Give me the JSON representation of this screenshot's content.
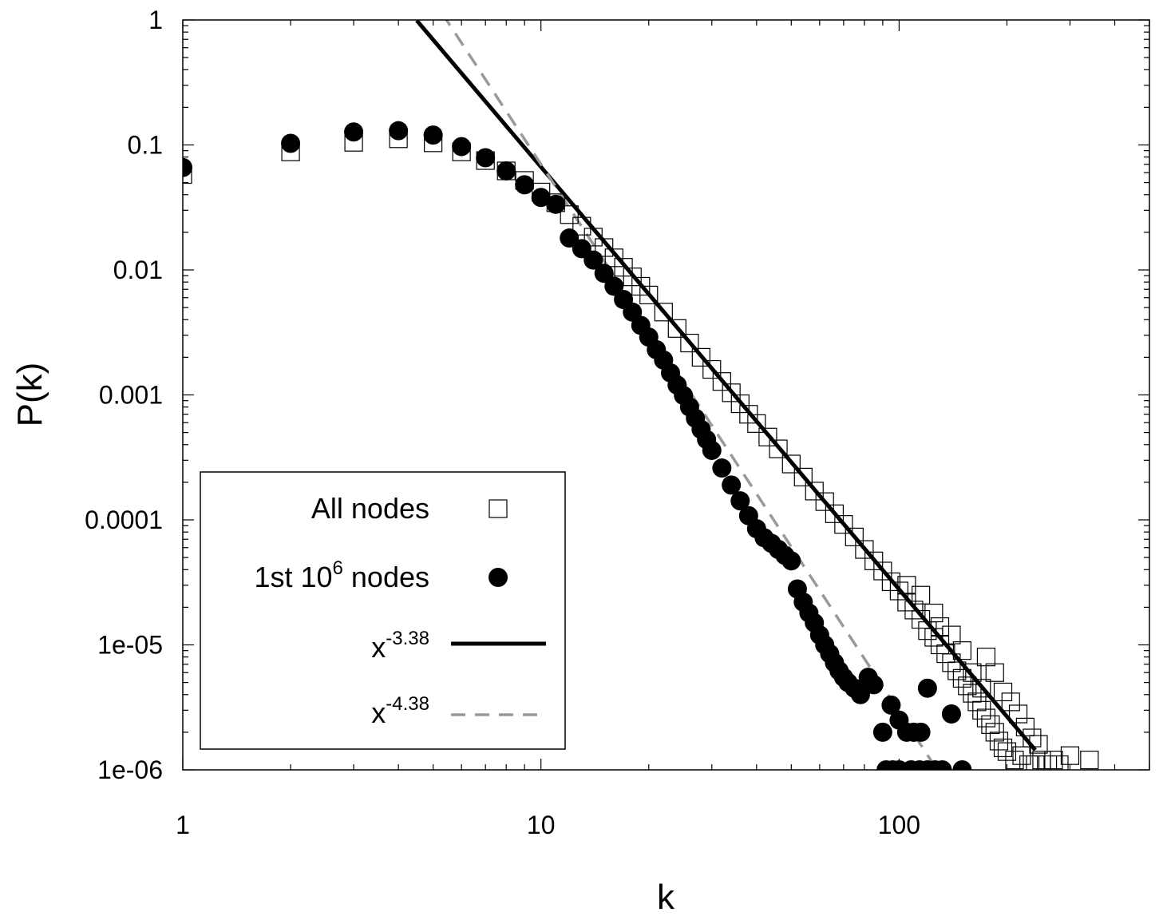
{
  "chart_data": {
    "type": "scatter",
    "xlabel": "k",
    "ylabel": "P(k)",
    "xscale": "log",
    "yscale": "log",
    "xlim": [
      1,
      500
    ],
    "ylim": [
      1e-06,
      1
    ],
    "x_tick_labels": [
      "1",
      "10",
      "100"
    ],
    "x_tick_values": [
      1,
      10,
      100
    ],
    "y_tick_labels": [
      "1",
      "0.1",
      "0.01",
      "0.001",
      "0.0001",
      "1e-05",
      "1e-06"
    ],
    "y_tick_values": [
      1,
      0.1,
      0.01,
      0.001,
      0.0001,
      1e-05,
      1e-06
    ],
    "legend_position": "bottom-left",
    "series": [
      {
        "name": "All nodes",
        "marker": "open-square",
        "points": [
          [
            1,
            0.058
          ],
          [
            2,
            0.088
          ],
          [
            3,
            0.105
          ],
          [
            4,
            0.112
          ],
          [
            5,
            0.104
          ],
          [
            6,
            0.088
          ],
          [
            7,
            0.075
          ],
          [
            8,
            0.062
          ],
          [
            9,
            0.052
          ],
          [
            10,
            0.042
          ],
          [
            11,
            0.0345
          ],
          [
            12,
            0.0277
          ],
          [
            13,
            0.0224
          ],
          [
            14,
            0.0183
          ],
          [
            15,
            0.0151
          ],
          [
            16,
            0.0125
          ],
          [
            17,
            0.0105
          ],
          [
            18,
            0.0088
          ],
          [
            19,
            0.0074
          ],
          [
            20,
            0.0063
          ],
          [
            22,
            0.0046
          ],
          [
            24,
            0.0034
          ],
          [
            26,
            0.0026
          ],
          [
            28,
            0.002
          ],
          [
            30,
            0.0016
          ],
          [
            32,
            0.00128
          ],
          [
            34,
            0.00104
          ],
          [
            36,
            0.00085
          ],
          [
            38,
            0.0007
          ],
          [
            40,
            0.00059
          ],
          [
            43,
            0.00046
          ],
          [
            46,
            0.00037
          ],
          [
            50,
            0.00028
          ],
          [
            54,
            0.00022
          ],
          [
            58,
            0.00017
          ],
          [
            62,
            0.00014
          ],
          [
            66,
            0.000112
          ],
          [
            70,
            9.2e-05
          ],
          [
            75,
            7.3e-05
          ],
          [
            80,
            5.8e-05
          ],
          [
            85,
            4.7e-05
          ],
          [
            90,
            3.9e-05
          ],
          [
            95,
            3.2e-05
          ],
          [
            100,
            2.7e-05
          ],
          [
            105,
            2.2e-05
          ],
          [
            110,
            1.9e-05
          ],
          [
            115,
            1.6e-05
          ],
          [
            120,
            1.3e-05
          ],
          [
            125,
            1.15e-05
          ],
          [
            130,
            1e-05
          ],
          [
            135,
            8.5e-06
          ],
          [
            140,
            7.2e-06
          ],
          [
            145,
            6.2e-06
          ],
          [
            150,
            5.4e-06
          ],
          [
            155,
            4.7e-06
          ],
          [
            160,
            4.1e-06
          ],
          [
            165,
            3.5e-06
          ],
          [
            170,
            3e-06
          ],
          [
            175,
            2.6e-06
          ],
          [
            180,
            2.3e-06
          ],
          [
            185,
            2e-06
          ],
          [
            190,
            1.7e-06
          ],
          [
            195,
            1.5e-06
          ],
          [
            200,
            1.4e-06
          ],
          [
            210,
            1.2e-06
          ],
          [
            220,
            1.3e-06
          ],
          [
            230,
            1.1e-06
          ],
          [
            240,
            1.1e-06
          ],
          [
            250,
            1.2e-06
          ],
          [
            260,
            1.1e-06
          ],
          [
            270,
            1.2e-06
          ],
          [
            280,
            1.1e-06
          ],
          [
            300,
            1.3e-06
          ],
          [
            340,
            1.2e-06
          ],
          [
            140,
            1.2e-05
          ],
          [
            150,
            9e-06
          ],
          [
            160,
            6e-06
          ],
          [
            170,
            4.5e-06
          ],
          [
            175,
            8e-06
          ],
          [
            185,
            6e-06
          ],
          [
            195,
            4.2e-06
          ],
          [
            205,
            3.5e-06
          ],
          [
            215,
            2.8e-06
          ],
          [
            225,
            2.2e-06
          ],
          [
            235,
            1.8e-06
          ],
          [
            245,
            1.6e-06
          ],
          [
            125,
            1.8e-05
          ],
          [
            130,
            1.4e-05
          ],
          [
            115,
            2.5e-05
          ],
          [
            105,
            3e-05
          ]
        ]
      },
      {
        "name": "1st 10^6 nodes",
        "marker": "filled-circle",
        "points": [
          [
            1,
            0.066
          ],
          [
            2,
            0.103
          ],
          [
            3,
            0.127
          ],
          [
            4,
            0.13
          ],
          [
            5,
            0.12
          ],
          [
            6,
            0.097
          ],
          [
            7,
            0.079
          ],
          [
            8,
            0.062
          ],
          [
            9,
            0.048
          ],
          [
            10,
            0.038
          ],
          [
            11,
            0.0335
          ],
          [
            12,
            0.018
          ],
          [
            13,
            0.0148
          ],
          [
            14,
            0.012
          ],
          [
            15,
            0.0094
          ],
          [
            16,
            0.0074
          ],
          [
            17,
            0.0058
          ],
          [
            18,
            0.0046
          ],
          [
            19,
            0.0036
          ],
          [
            20,
            0.0029
          ],
          [
            21,
            0.0023
          ],
          [
            22,
            0.0019
          ],
          [
            23,
            0.0015
          ],
          [
            24,
            0.0012
          ],
          [
            25,
            0.00099
          ],
          [
            26,
            0.0008
          ],
          [
            27,
            0.00065
          ],
          [
            28,
            0.00053
          ],
          [
            29,
            0.00044
          ],
          [
            30,
            0.00036
          ],
          [
            32,
            0.00026
          ],
          [
            34,
            0.00019
          ],
          [
            36,
            0.000142
          ],
          [
            38,
            0.000108
          ],
          [
            40,
            8.5e-05
          ],
          [
            42,
            7.2e-05
          ],
          [
            44,
            6.5e-05
          ],
          [
            46,
            5.8e-05
          ],
          [
            48,
            5.2e-05
          ],
          [
            50,
            4.7e-05
          ],
          [
            52,
            2.8e-05
          ],
          [
            54,
            2.2e-05
          ],
          [
            56,
            1.8e-05
          ],
          [
            58,
            1.5e-05
          ],
          [
            60,
            1.2e-05
          ],
          [
            62,
            1e-05
          ],
          [
            64,
            8.5e-06
          ],
          [
            66,
            7.2e-06
          ],
          [
            68,
            6.2e-06
          ],
          [
            70,
            5.5e-06
          ],
          [
            72,
            5e-06
          ],
          [
            75,
            4.5e-06
          ],
          [
            78,
            4e-06
          ],
          [
            82,
            5.5e-06
          ],
          [
            85,
            4.8e-06
          ],
          [
            90,
            2e-06
          ],
          [
            95,
            3.3e-06
          ],
          [
            100,
            2.5e-06
          ],
          [
            105,
            2e-06
          ],
          [
            110,
            2e-06
          ],
          [
            115,
            2e-06
          ],
          [
            120,
            4.5e-06
          ],
          [
            140,
            2.8e-06
          ],
          [
            92,
            1e-06
          ],
          [
            96,
            1e-06
          ],
          [
            100,
            1e-06
          ],
          [
            108,
            1e-06
          ],
          [
            114,
            1e-06
          ],
          [
            120,
            1e-06
          ],
          [
            126,
            1e-06
          ],
          [
            132,
            1e-06
          ],
          [
            150,
            1e-06
          ]
        ]
      },
      {
        "name": "x^-3.38",
        "line_style": "solid",
        "color": "#000000",
        "exponent": -3.38,
        "coefficient": 160,
        "x_range": [
          4.5,
          240
        ]
      },
      {
        "name": "x^-4.38",
        "line_style": "dashed",
        "color": "#999999",
        "exponent": -4.38,
        "coefficient": 1680,
        "x_range": [
          5.3,
          130
        ]
      }
    ],
    "legend": {
      "entries": [
        {
          "text": "All nodes",
          "base": "All nodes",
          "sup": "",
          "tail": "",
          "symbol": "open-square"
        },
        {
          "text": "1st 10^6 nodes",
          "base": "1st 10",
          "sup": "6",
          "tail": " nodes",
          "symbol": "filled-circle"
        },
        {
          "text": "x^-3.38",
          "base": "x",
          "sup": "-3.38",
          "tail": "",
          "symbol": "solid-line"
        },
        {
          "text": "x^-4.38",
          "base": "x",
          "sup": "-4.38",
          "tail": "",
          "symbol": "dashed-line"
        }
      ]
    }
  }
}
